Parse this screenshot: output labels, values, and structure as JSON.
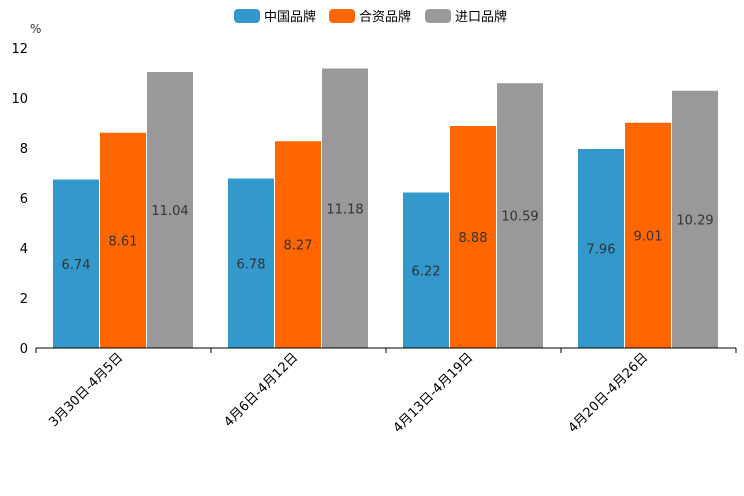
{
  "chart_data": {
    "type": "bar",
    "title": "",
    "ylabel": "%",
    "xlabel": "",
    "ylim": [
      0,
      12
    ],
    "yticks": [
      0,
      2,
      4,
      6,
      8,
      10,
      12
    ],
    "legend_position": "top-center",
    "grid": false,
    "categories": [
      "3月30日-4月5日",
      "4月6日-4月12日",
      "4月13日-4月19日",
      "4月20日-4月26日"
    ],
    "series": [
      {
        "name": "中国品牌",
        "color": "#3399cc",
        "values": [
          6.74,
          6.78,
          6.22,
          7.96
        ]
      },
      {
        "name": "合资品牌",
        "color": "#ff6600",
        "values": [
          8.61,
          8.27,
          8.88,
          9.01
        ]
      },
      {
        "name": "进口品牌",
        "color": "#999999",
        "values": [
          11.04,
          11.18,
          10.59,
          10.29
        ]
      }
    ]
  }
}
